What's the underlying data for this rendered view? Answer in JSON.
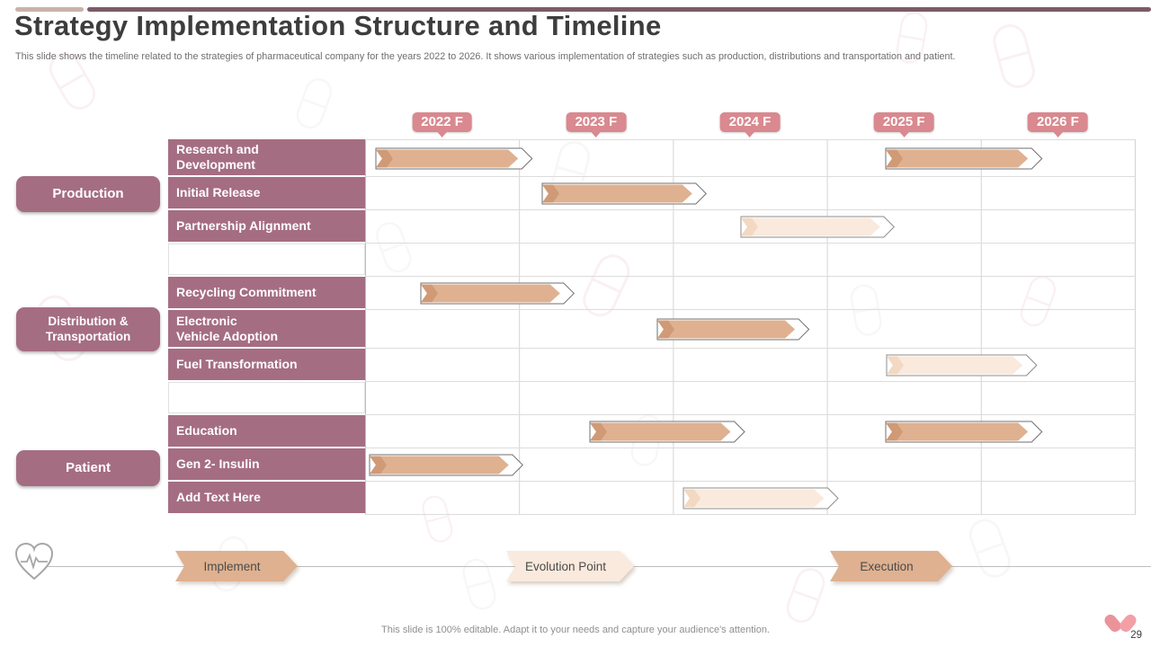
{
  "slide": {
    "title": "Strategy Implementation Structure and Timeline",
    "subtitle": "This slide shows the timeline related to the strategies of pharmaceutical company for the years 2022 to 2026. It shows various implementation of strategies such as production, distributions and transportation and patient.",
    "footer": "This slide is 100% editable. Adapt it to your needs and capture your audience's attention.",
    "page_number": "29"
  },
  "colors": {
    "topbar_left": "#c9b3a9",
    "topbar_right": "#7b5b68",
    "label_mauve": "#a56d82",
    "badge_pink": "#d9898f",
    "bar_solid": "#dfb190",
    "bar_solid_dark": "#d09a76",
    "bar_light": "#faeadd",
    "bar_light_dark": "#f3d8c2",
    "grid_line": "#d4d4d4"
  },
  "chart_data": {
    "type": "gantt",
    "title": "Strategy Implementation Structure and Timeline",
    "x_axis": {
      "labels": [
        "2022 F",
        "2023 F",
        "2024 F",
        "2025 F",
        "2026 F"
      ],
      "range_years": [
        2022,
        2027
      ],
      "grid": true
    },
    "legend": [
      {
        "label": "Implement",
        "style": "solid"
      },
      {
        "label": "Evolution Point",
        "style": "light"
      },
      {
        "label": "Execution",
        "style": "solid"
      }
    ],
    "groups": [
      {
        "label": "Production",
        "lines": [
          "Production"
        ]
      },
      {
        "label": "Distribution & Transportation",
        "lines": [
          "Distribution &",
          "Transportation"
        ]
      },
      {
        "label": "Patient",
        "lines": [
          "Patient"
        ]
      }
    ],
    "rows": [
      {
        "label": "Research and Development",
        "lines": [
          "Research and",
          "Development"
        ],
        "bars": [
          {
            "start": 2022.07,
            "end": 2023.0,
            "style": "solid"
          },
          {
            "start": 2025.38,
            "end": 2026.31,
            "style": "solid"
          }
        ]
      },
      {
        "label": "Initial Release",
        "lines": [
          "Initial Release"
        ],
        "bars": [
          {
            "start": 2023.15,
            "end": 2024.13,
            "style": "solid"
          }
        ]
      },
      {
        "label": "Partnership Alignment",
        "lines": [
          "Partnership Alignment"
        ],
        "bars": [
          {
            "start": 2024.44,
            "end": 2025.35,
            "style": "light"
          }
        ]
      },
      {
        "label": "Recycling Commitment",
        "lines": [
          "Recycling Commitment"
        ],
        "bars": [
          {
            "start": 2022.36,
            "end": 2023.27,
            "style": "solid"
          }
        ]
      },
      {
        "label": "Electronic Vehicle Adoption",
        "lines": [
          "Electronic",
          "Vehicle Adoption"
        ],
        "bars": [
          {
            "start": 2023.9,
            "end": 2024.8,
            "style": "solid"
          }
        ]
      },
      {
        "label": "Fuel Transformation",
        "lines": [
          "Fuel Transformation"
        ],
        "bars": [
          {
            "start": 2025.39,
            "end": 2026.28,
            "style": "light"
          }
        ]
      },
      {
        "label": "Education",
        "lines": [
          "Education"
        ],
        "bars": [
          {
            "start": 2023.46,
            "end": 2024.38,
            "style": "solid"
          },
          {
            "start": 2025.38,
            "end": 2026.31,
            "style": "solid"
          }
        ]
      },
      {
        "label": "Gen 2- Insulin",
        "lines": [
          "Gen 2- Insulin"
        ],
        "bars": [
          {
            "start": 2022.03,
            "end": 2022.94,
            "style": "solid"
          }
        ]
      },
      {
        "label": "Add Text Here",
        "lines": [
          "Add Text Here"
        ],
        "bars": [
          {
            "start": 2024.07,
            "end": 2024.99,
            "style": "light"
          }
        ]
      }
    ]
  }
}
